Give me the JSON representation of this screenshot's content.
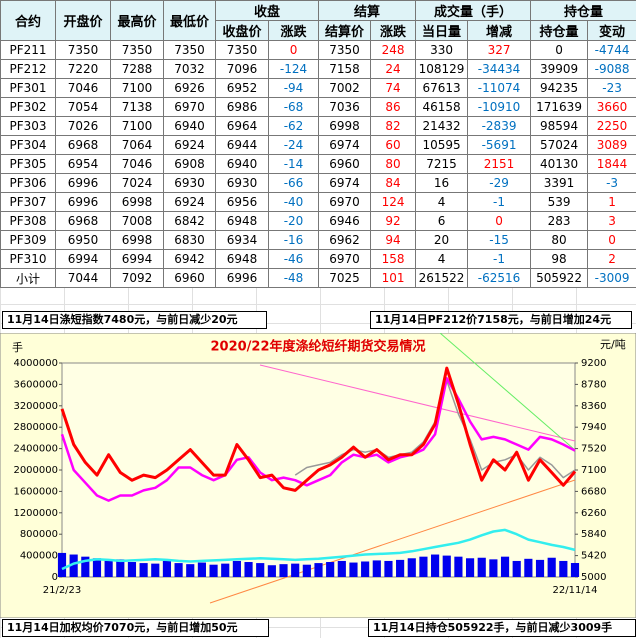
{
  "table": {
    "header_top": [
      "合约",
      "开盘价",
      "最高价",
      "最低价",
      "收盘",
      "结算",
      "成交量（手）",
      "持仓量"
    ],
    "header_sub": [
      "收盘价",
      "涨跌",
      "结算价",
      "涨跌",
      "当日量",
      "增减",
      "持仓量",
      "变动"
    ],
    "rows": [
      [
        "PF211",
        "7350",
        "7350",
        "7350",
        "7350",
        "0",
        "7350",
        "248",
        "330",
        "327",
        "0",
        "-4744"
      ],
      [
        "PF212",
        "7220",
        "7288",
        "7032",
        "7096",
        "-124",
        "7158",
        "24",
        "108129",
        "-34434",
        "39909",
        "-9088"
      ],
      [
        "PF301",
        "7046",
        "7100",
        "6926",
        "6952",
        "-94",
        "7002",
        "74",
        "67613",
        "-11074",
        "94235",
        "-23"
      ],
      [
        "PF302",
        "7054",
        "7138",
        "6970",
        "6986",
        "-68",
        "7036",
        "86",
        "46158",
        "-10910",
        "171639",
        "3660"
      ],
      [
        "PF303",
        "7026",
        "7100",
        "6940",
        "6964",
        "-62",
        "6998",
        "82",
        "21432",
        "-2839",
        "98594",
        "2250"
      ],
      [
        "PF304",
        "6968",
        "7064",
        "6924",
        "6944",
        "-24",
        "6974",
        "60",
        "10595",
        "-5691",
        "57024",
        "3089"
      ],
      [
        "PF305",
        "6954",
        "7046",
        "6908",
        "6940",
        "-14",
        "6960",
        "80",
        "7215",
        "2151",
        "40130",
        "1844"
      ],
      [
        "PF306",
        "6996",
        "7024",
        "6930",
        "6930",
        "-66",
        "6974",
        "84",
        "16",
        "-29",
        "3391",
        "-3"
      ],
      [
        "PF307",
        "6996",
        "6998",
        "6924",
        "6956",
        "-40",
        "6970",
        "124",
        "4",
        "-1",
        "539",
        "1"
      ],
      [
        "PF308",
        "6968",
        "7008",
        "6842",
        "6948",
        "-20",
        "6946",
        "92",
        "6",
        "0",
        "283",
        "3"
      ],
      [
        "PF309",
        "6950",
        "6998",
        "6830",
        "6934",
        "-16",
        "6962",
        "94",
        "20",
        "-15",
        "80",
        "0"
      ],
      [
        "PF310",
        "6994",
        "6994",
        "6942",
        "6948",
        "-46",
        "6970",
        "158",
        "4",
        "-1",
        "98",
        "2"
      ],
      [
        "小计",
        "7044",
        "7092",
        "6960",
        "6996",
        "-48",
        "7025",
        "101",
        "261522",
        "-62516",
        "505922",
        "-3009"
      ]
    ]
  },
  "notes": [
    "11月14日涤短指数7480元，与前日减少20元",
    "11月14日PF212价7158元，与前日增加24元",
    "11月14日加权均价7070元，与前日增加50元",
    "11月14日持仓505922手，与前日减少3009手"
  ],
  "chart_data": {
    "type": "combo",
    "title": "2020/22年度涤纶短纤期货交易情况",
    "y_label": "手",
    "y2_label": "元/吨",
    "categories": [
      "21/2/23",
      null,
      null,
      null,
      null,
      null,
      null,
      null,
      null,
      null,
      null,
      null,
      null,
      null,
      null,
      null,
      null,
      null,
      null,
      null,
      null,
      null,
      null,
      null,
      null,
      null,
      null,
      null,
      null,
      null,
      null,
      null,
      null,
      null,
      null,
      null,
      null,
      null,
      null,
      null,
      null,
      null,
      null,
      null,
      "22/11/14"
    ],
    "ylim": [
      0,
      4000000
    ],
    "yticks": [
      0,
      400000,
      800000,
      1200000,
      1600000,
      2000000,
      2400000,
      2800000,
      3200000,
      3600000,
      4000000
    ],
    "y2lim": [
      5000,
      9200
    ],
    "y2ticks": [
      5000,
      5420,
      5840,
      6260,
      6680,
      7100,
      7520,
      7940,
      8360,
      8780,
      9200
    ],
    "series": [
      {
        "type": "bar",
        "color": "#0000ee",
        "values": [
          450000,
          420000,
          380000,
          350000,
          300000,
          330000,
          280000,
          260000,
          250000,
          300000,
          260000,
          240000,
          270000,
          230000,
          250000,
          300000,
          280000,
          260000,
          220000,
          240000,
          250000,
          230000,
          260000,
          280000,
          300000,
          270000,
          290000,
          310000,
          300000,
          320000,
          350000,
          380000,
          420000,
          400000,
          380000,
          350000,
          360000,
          330000,
          380000,
          300000,
          340000,
          320000,
          360000,
          300000,
          261522
        ]
      },
      {
        "type": "line",
        "color": "#33eeee",
        "values": [
          150000,
          250000,
          300000,
          330000,
          320000,
          300000,
          310000,
          320000,
          330000,
          320000,
          300000,
          290000,
          300000,
          310000,
          320000,
          330000,
          340000,
          350000,
          340000,
          330000,
          320000,
          330000,
          340000,
          360000,
          380000,
          400000,
          420000,
          430000,
          440000,
          450000,
          480000,
          520000,
          560000,
          600000,
          640000,
          700000,
          780000,
          850000,
          880000,
          800000,
          700000,
          650000,
          600000,
          560000,
          505922
        ]
      },
      {
        "type": "line",
        "axis": "y2",
        "color": "#999999",
        "values": [
          null,
          null,
          null,
          null,
          null,
          null,
          null,
          null,
          null,
          null,
          null,
          null,
          null,
          null,
          null,
          null,
          null,
          null,
          null,
          null,
          7000,
          7150,
          7200,
          7250,
          7400,
          7500,
          7450,
          7500,
          7350,
          7400,
          7450,
          7650,
          8050,
          8850,
          8200,
          7700,
          7100,
          7250,
          7300,
          7400,
          7100,
          7350,
          7200,
          6950,
          7100
        ]
      },
      {
        "type": "line",
        "axis": "y2",
        "color": "#ff00ff",
        "values": [
          7800,
          7100,
          6850,
          6600,
          6500,
          6600,
          6600,
          6700,
          6750,
          6900,
          7150,
          7150,
          7000,
          6900,
          7000,
          7300,
          7350,
          7050,
          6900,
          6950,
          6900,
          6800,
          6900,
          7000,
          7250,
          7400,
          7350,
          7400,
          7250,
          7350,
          7400,
          7500,
          7800,
          8900,
          8500,
          8050,
          7700,
          7750,
          7700,
          7600,
          7500,
          7750,
          7700,
          7600,
          7480
        ]
      },
      {
        "type": "line",
        "axis": "y2",
        "color": "#ff0000",
        "values": [
          8300,
          7600,
          7250,
          7000,
          7400,
          7050,
          6900,
          7000,
          6950,
          7100,
          7300,
          7500,
          7250,
          7000,
          7000,
          7600,
          7300,
          6950,
          7000,
          6750,
          6700,
          6900,
          7100,
          7200,
          7350,
          7550,
          7350,
          7500,
          7300,
          7400,
          7400,
          7600,
          8000,
          9100,
          8400,
          7600,
          6900,
          7300,
          7100,
          7450,
          6900,
          7300,
          7050,
          6800,
          7070
        ]
      }
    ]
  }
}
